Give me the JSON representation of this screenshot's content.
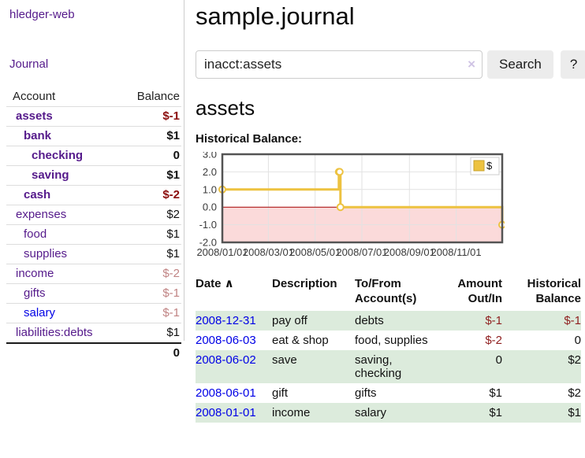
{
  "colors": {
    "link_purple": "#551a8b",
    "link_blue": "#0000e6",
    "negative_bold": "#8b0e0e",
    "negative_muted": "#c08383",
    "negative_table": "#8f1f1f",
    "row_green": "#dcebdc",
    "chart_gold": "#edc240",
    "chart_negative_fill": "#fbdada",
    "chart_zero_line": "#a40000"
  },
  "sidebar": {
    "app_title": "hledger-web",
    "nav_journal": "Journal",
    "accounts_table": {
      "account_header": "Account",
      "balance_header": "Balance",
      "rows": [
        {
          "label": "assets",
          "balance": "$-1",
          "depth": 1,
          "bold": true,
          "color": "purple",
          "balance_style": "neg"
        },
        {
          "label": "bank",
          "balance": "$1",
          "depth": 2,
          "bold": true,
          "color": "purple",
          "balance_style": "plain"
        },
        {
          "label": "checking",
          "balance": "0",
          "depth": 3,
          "bold": true,
          "color": "purple",
          "balance_style": "plain"
        },
        {
          "label": "saving",
          "balance": "$1",
          "depth": 3,
          "bold": true,
          "color": "purple",
          "balance_style": "plain"
        },
        {
          "label": "cash",
          "balance": "$-2",
          "depth": 2,
          "bold": true,
          "color": "purple",
          "balance_style": "neg"
        },
        {
          "label": "expenses",
          "balance": "$2",
          "depth": 1,
          "bold": false,
          "color": "purple",
          "balance_style": "plain"
        },
        {
          "label": "food",
          "balance": "$1",
          "depth": 2,
          "bold": false,
          "color": "purple",
          "balance_style": "plain"
        },
        {
          "label": "supplies",
          "balance": "$1",
          "depth": 2,
          "bold": false,
          "color": "purple",
          "balance_style": "plain"
        },
        {
          "label": "income",
          "balance": "$-2",
          "depth": 1,
          "bold": false,
          "color": "purple",
          "balance_style": "negmuted"
        },
        {
          "label": "gifts",
          "balance": "$-1",
          "depth": 2,
          "bold": false,
          "color": "purple",
          "balance_style": "negmuted"
        },
        {
          "label": "salary",
          "balance": "$-1",
          "depth": 2,
          "bold": false,
          "color": "blue",
          "balance_style": "negmuted"
        },
        {
          "label": "liabilities:debts",
          "balance": "$1",
          "depth": 1,
          "bold": false,
          "color": "purple",
          "balance_style": "plain"
        }
      ],
      "total": "0"
    }
  },
  "main": {
    "title": "sample.journal",
    "search": {
      "value": "inacct:assets",
      "clear_icon": "×",
      "search_button": "Search",
      "help_button": "?"
    },
    "account_heading": "assets"
  },
  "chart_data": {
    "type": "line",
    "title": "Historical Balance:",
    "step": true,
    "legend_position": "top-right",
    "series": [
      {
        "name": "$",
        "color": "#edc240",
        "points": [
          {
            "x": "2008-01-01",
            "y": 1
          },
          {
            "x": "2008-06-01",
            "y": 2
          },
          {
            "x": "2008-06-02",
            "y": 2
          },
          {
            "x": "2008-06-03",
            "y": 0
          },
          {
            "x": "2008-12-31",
            "y": -1
          }
        ]
      }
    ],
    "xlim": [
      "2008-01-01",
      "2008-12-31"
    ],
    "ylim": [
      -2,
      3
    ],
    "yticks": [
      3,
      2,
      1,
      0,
      -1,
      -2
    ],
    "xticks": [
      "2008/01/01",
      "2008/03/01",
      "2008/05/01",
      "2008/07/01",
      "2008/09/01",
      "2008/11/01"
    ],
    "negative_region_color": "#fbdada",
    "zero_line_color": "#a40000",
    "grid": true
  },
  "transactions": {
    "headers": [
      {
        "label": "Date",
        "sort_icon": "∧",
        "align": "left"
      },
      {
        "label": "Description",
        "align": "left"
      },
      {
        "label": "To/From Account(s)",
        "align": "left"
      },
      {
        "label": "Amount Out/In",
        "align": "right"
      },
      {
        "label": "Historical Balance",
        "align": "right"
      }
    ],
    "rows": [
      {
        "date": "2008-12-31",
        "description": "pay off",
        "accounts": "debts",
        "amount": "$-1",
        "balance": "$-1"
      },
      {
        "date": "2008-06-03",
        "description": "eat & shop",
        "accounts": "food, supplies",
        "amount": "$-2",
        "balance": "0"
      },
      {
        "date": "2008-06-02",
        "description": "save",
        "accounts": "saving, checking",
        "amount": "0",
        "balance": "$2"
      },
      {
        "date": "2008-06-01",
        "description": "gift",
        "accounts": "gifts",
        "amount": "$1",
        "balance": "$2"
      },
      {
        "date": "2008-01-01",
        "description": "income",
        "accounts": "salary",
        "amount": "$1",
        "balance": "$1"
      }
    ]
  }
}
